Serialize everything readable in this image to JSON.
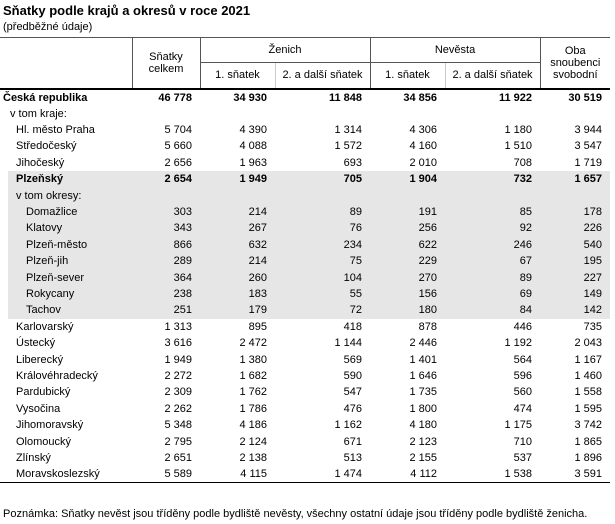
{
  "header": {
    "title": "Sňatky podle krajů a okresů v roce 2021",
    "subtitle": "(předběžné údaje)"
  },
  "table": {
    "columns": {
      "total": "Sňatky celkem",
      "groom": {
        "label": "Ženich",
        "columns": [
          "1. sňatek",
          "2. a další sňatek"
        ]
      },
      "bride": {
        "label": "Nevěsta",
        "columns": [
          "1. sňatek",
          "2. a další sňatek"
        ]
      },
      "both_single": "Oba snoubenci svobodní"
    },
    "rows": [
      {
        "label": "Česká republika",
        "cells": [
          "46 778",
          "34 930",
          "11 848",
          "34 856",
          "11 922",
          "30 519"
        ],
        "bold": true,
        "indent": 0
      },
      {
        "label": "v tom kraje:",
        "indent": 1
      },
      {
        "label": "Hl. město Praha",
        "cells": [
          "5 704",
          "4 390",
          "1 314",
          "4 306",
          "1 180",
          "3 944"
        ],
        "indent": 2
      },
      {
        "label": "Středočeský",
        "cells": [
          "5 660",
          "4 088",
          "1 572",
          "4 160",
          "1 510",
          "3 547"
        ],
        "indent": 2
      },
      {
        "label": "Jihočeský",
        "cells": [
          "2 656",
          "1 963",
          "693",
          "2 010",
          "708",
          "1 719"
        ],
        "indent": 2
      },
      {
        "label": "Plzeňský",
        "cells": [
          "2 654",
          "1 949",
          "705",
          "1 904",
          "732",
          "1 657"
        ],
        "bold": true,
        "shaded": true,
        "indent": 2
      },
      {
        "label": "v tom okresy:",
        "shaded": true,
        "indent": 2
      },
      {
        "label": "Domažlice",
        "cells": [
          "303",
          "214",
          "89",
          "191",
          "85",
          "178"
        ],
        "shaded": true,
        "indent": 3
      },
      {
        "label": "Klatovy",
        "cells": [
          "343",
          "267",
          "76",
          "256",
          "92",
          "226"
        ],
        "shaded": true,
        "indent": 3
      },
      {
        "label": "Plzeň-město",
        "cells": [
          "866",
          "632",
          "234",
          "622",
          "246",
          "540"
        ],
        "shaded": true,
        "indent": 3
      },
      {
        "label": "Plzeň-jih",
        "cells": [
          "289",
          "214",
          "75",
          "229",
          "67",
          "195"
        ],
        "shaded": true,
        "indent": 3
      },
      {
        "label": "Plzeň-sever",
        "cells": [
          "364",
          "260",
          "104",
          "270",
          "89",
          "227"
        ],
        "shaded": true,
        "indent": 3
      },
      {
        "label": "Rokycany",
        "cells": [
          "238",
          "183",
          "55",
          "156",
          "69",
          "149"
        ],
        "shaded": true,
        "indent": 3
      },
      {
        "label": "Tachov",
        "cells": [
          "251",
          "179",
          "72",
          "180",
          "84",
          "142"
        ],
        "shaded": true,
        "indent": 3
      },
      {
        "label": "Karlovarský",
        "cells": [
          "1 313",
          "895",
          "418",
          "878",
          "446",
          "735"
        ],
        "indent": 2
      },
      {
        "label": "Ústecký",
        "cells": [
          "3 616",
          "2 472",
          "1 144",
          "2 446",
          "1 192",
          "2 043"
        ],
        "indent": 2
      },
      {
        "label": "Liberecký",
        "cells": [
          "1 949",
          "1 380",
          "569",
          "1 401",
          "564",
          "1 167"
        ],
        "indent": 2
      },
      {
        "label": "Královéhradecký",
        "cells": [
          "2 272",
          "1 682",
          "590",
          "1 646",
          "596",
          "1 460"
        ],
        "indent": 2
      },
      {
        "label": "Pardubický",
        "cells": [
          "2 309",
          "1 762",
          "547",
          "1 735",
          "560",
          "1 558"
        ],
        "indent": 2
      },
      {
        "label": "Vysočina",
        "cells": [
          "2 262",
          "1 786",
          "476",
          "1 800",
          "474",
          "1 595"
        ],
        "indent": 2
      },
      {
        "label": "Jihomoravský",
        "cells": [
          "5 348",
          "4 186",
          "1 162",
          "4 180",
          "1 175",
          "3 742"
        ],
        "indent": 2
      },
      {
        "label": "Olomoucký",
        "cells": [
          "2 795",
          "2 124",
          "671",
          "2 123",
          "710",
          "1 865"
        ],
        "indent": 2
      },
      {
        "label": "Zlínský",
        "cells": [
          "2 651",
          "2 138",
          "513",
          "2 155",
          "537",
          "1 896"
        ],
        "indent": 2
      },
      {
        "label": "Moravskoslezský",
        "cells": [
          "5 589",
          "4 115",
          "1 474",
          "4 112",
          "1 538",
          "3 591"
        ],
        "indent": 2
      }
    ]
  },
  "footnote": "Poznámka: Sňatky nevěst jsou tříděny podle bydliště nevěsty, všechny ostatní údaje jsou tříděny podle bydliště ženicha."
}
